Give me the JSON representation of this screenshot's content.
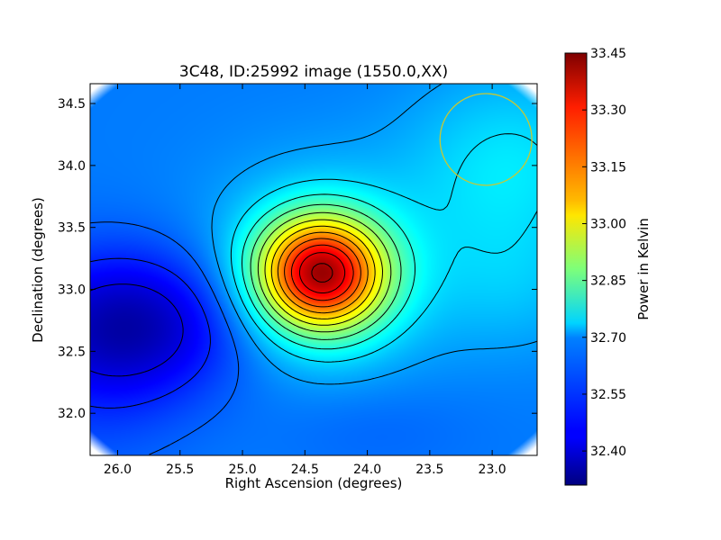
{
  "chart_data": {
    "type": "heatmap",
    "title": "3C48, ID:25992 image (1550.0,XX)",
    "xlabel": "Right Ascension (degrees)",
    "ylabel": "Declination (degrees)",
    "xlim": [
      26.22,
      22.64
    ],
    "ylim": [
      31.66,
      34.66
    ],
    "x_ticks": [
      26.0,
      25.5,
      25.0,
      24.5,
      24.0,
      23.5,
      23.0
    ],
    "x_tick_labels": [
      "26.0",
      "25.5",
      "25.0",
      "24.5",
      "24.0",
      "23.5",
      "23.0"
    ],
    "y_ticks": [
      32.0,
      32.5,
      33.0,
      33.5,
      34.0,
      34.5
    ],
    "y_tick_labels": [
      "32.0",
      "32.5",
      "33.0",
      "33.5",
      "34.0",
      "34.5"
    ],
    "colorbar": {
      "label": "Power in Kelvin",
      "range": [
        32.31,
        33.45
      ],
      "ticks": [
        32.4,
        32.55,
        32.7,
        32.85,
        33.0,
        33.15,
        33.3,
        33.45
      ],
      "tick_labels": [
        "32.40",
        "32.55",
        "32.70",
        "32.85",
        "33.00",
        "33.15",
        "33.30",
        "33.45"
      ],
      "colormap": "jet"
    },
    "peak": {
      "ra": 24.37,
      "dec": 33.13,
      "value": 33.44
    },
    "minimum": {
      "ra": 25.85,
      "dec": 32.73,
      "value": 32.32
    },
    "beam_circle": {
      "ra": 23.05,
      "dec": 34.21,
      "radius_deg": 0.37,
      "color": "#c8c832"
    },
    "grid": false
  }
}
